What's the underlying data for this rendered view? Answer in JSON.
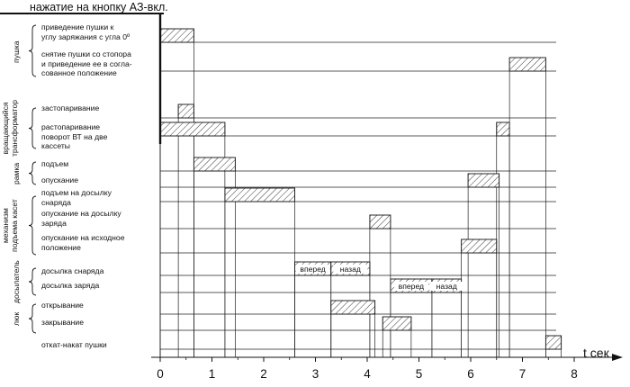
{
  "title": "нажатие на кнопку АЗ-вкл.",
  "axis_label": "t сек",
  "ticks": [
    "0",
    "1",
    "2",
    "3",
    "4",
    "5",
    "6",
    "7",
    "8"
  ],
  "groups": [
    {
      "label": "пушка"
    },
    {
      "label": "вращающийся\nтрансформатор"
    },
    {
      "label": "рамка"
    },
    {
      "label": "механизм\nподъема касет"
    },
    {
      "label": "досылатель"
    },
    {
      "label": "люк"
    }
  ],
  "operations": [
    "приведение пушки к\nуглу заряжания с угла 0º",
    "снятие пушки со стопора\nи приведение ее в согла-\nсованное положение",
    "застопаривание",
    "растопаривание\nповорот ВТ на две\nкассеты",
    "подъем",
    "опускание",
    "подъем на досылку\nснаряда",
    "опускание на досылку\nзаряда",
    "опускание на исходное\nположение",
    "досылка снаряда",
    "досылка заряда",
    "открывание",
    "закрывание",
    "откат-накат пушки"
  ],
  "bar_labels": {
    "forward": "вперед",
    "back": "назад"
  },
  "chart_data": {
    "type": "gantt",
    "x_unit": "сек",
    "xlim": [
      0,
      8
    ],
    "tasks": [
      {
        "op": 0,
        "start": 0.0,
        "end": 0.65
      },
      {
        "op": 1,
        "start": 6.75,
        "end": 7.45
      },
      {
        "op": 2,
        "start": 0.35,
        "end": 0.65
      },
      {
        "op": 3,
        "start": 0.0,
        "end": 1.25
      },
      {
        "op": 3,
        "start": 6.5,
        "end": 6.75
      },
      {
        "op": 4,
        "start": 0.65,
        "end": 1.45
      },
      {
        "op": 5,
        "start": 5.95,
        "end": 6.55
      },
      {
        "op": 6,
        "start": 1.25,
        "end": 2.6
      },
      {
        "op": 7,
        "start": 4.05,
        "end": 4.45
      },
      {
        "op": 8,
        "start": 5.82,
        "end": 6.5
      },
      {
        "op": 9,
        "start": 2.6,
        "end": 3.3,
        "label": "forward"
      },
      {
        "op": 9,
        "start": 3.3,
        "end": 4.05,
        "label": "back"
      },
      {
        "op": 10,
        "start": 4.45,
        "end": 5.25,
        "label": "forward"
      },
      {
        "op": 10,
        "start": 5.25,
        "end": 5.82,
        "label": "back"
      },
      {
        "op": 11,
        "start": 3.3,
        "end": 4.15
      },
      {
        "op": 12,
        "start": 4.3,
        "end": 4.85
      },
      {
        "op": 13,
        "start": 7.45,
        "end": 7.75
      }
    ]
  }
}
